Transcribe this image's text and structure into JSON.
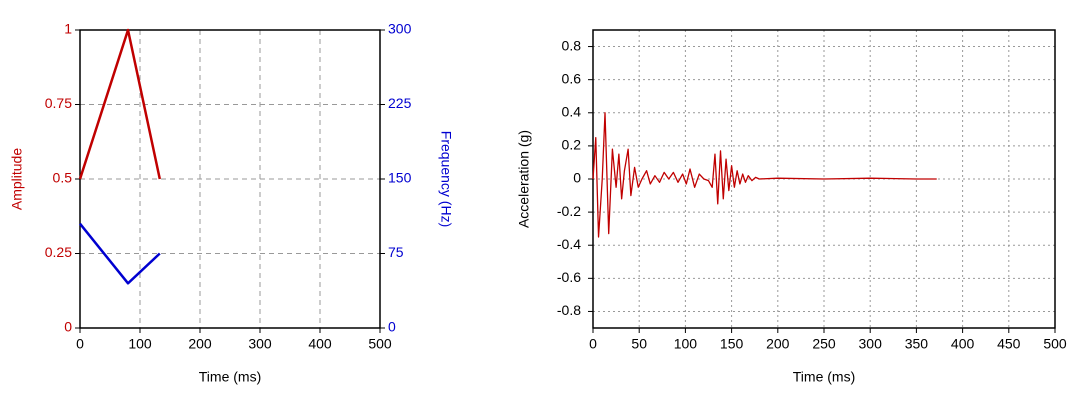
{
  "chart_data": [
    {
      "type": "line",
      "xlabel": "Time (ms)",
      "ylabel": "Amplitude",
      "y2label": "Frequency (Hz)",
      "x": [
        0,
        80,
        133
      ],
      "series": [
        {
          "name": "Amplitude",
          "color": "#c00000",
          "values": [
            0.5,
            1,
            0.5
          ]
        },
        {
          "name": "Frequency",
          "color": "#0000d0",
          "axis": "y2",
          "values": [
            105,
            45,
            75
          ]
        }
      ],
      "xlim": [
        0,
        500
      ],
      "xticks": [
        0,
        100,
        200,
        300,
        400,
        500
      ],
      "ylim": [
        0,
        1
      ],
      "yticks": [
        0,
        0.25,
        0.5,
        0.75,
        1
      ],
      "y2lim": [
        0,
        300
      ],
      "y2ticks": [
        0,
        75,
        150,
        225,
        300
      ],
      "grid": "dashed"
    },
    {
      "type": "line",
      "xlabel": "Time (ms)",
      "ylabel": "Acceleration (g)",
      "x": [
        0,
        3,
        6,
        10,
        13,
        17,
        21,
        25,
        28,
        31,
        34,
        38,
        41,
        45,
        49,
        53,
        58,
        62,
        67,
        72,
        77,
        82,
        87,
        92,
        97,
        101,
        105,
        110,
        115,
        120,
        125,
        129,
        132,
        135,
        138,
        141,
        144,
        147,
        150,
        153,
        156,
        159,
        162,
        165,
        168,
        172,
        176,
        180,
        200,
        250,
        300,
        350,
        372
      ],
      "series": [
        {
          "name": "Acceleration",
          "color": "#c00000",
          "values": [
            0,
            0.25,
            -0.35,
            0,
            0.4,
            -0.33,
            0.18,
            -0.05,
            0.15,
            -0.12,
            0.05,
            0.18,
            -0.1,
            0.07,
            -0.05,
            0,
            0.05,
            -0.03,
            0.02,
            -0.02,
            0.04,
            0,
            0.04,
            -0.02,
            0.03,
            -0.03,
            0.06,
            -0.05,
            0.03,
            0,
            -0.01,
            -0.05,
            0.15,
            -0.15,
            0.17,
            -0.12,
            0.12,
            -0.07,
            0.08,
            -0.05,
            0.05,
            -0.03,
            0.03,
            -0.02,
            0.02,
            -0.01,
            0.01,
            0,
            0.005,
            0,
            0.005,
            0,
            0
          ]
        }
      ],
      "xlim": [
        0,
        500
      ],
      "xticks": [
        0,
        50,
        100,
        150,
        200,
        250,
        300,
        350,
        400,
        450,
        500
      ],
      "ylim": [
        -0.9,
        0.9
      ],
      "yticks": [
        -0.8,
        -0.6,
        -0.4,
        -0.2,
        0,
        0.2,
        0.4,
        0.6,
        0.8
      ],
      "grid": "dotted"
    }
  ]
}
